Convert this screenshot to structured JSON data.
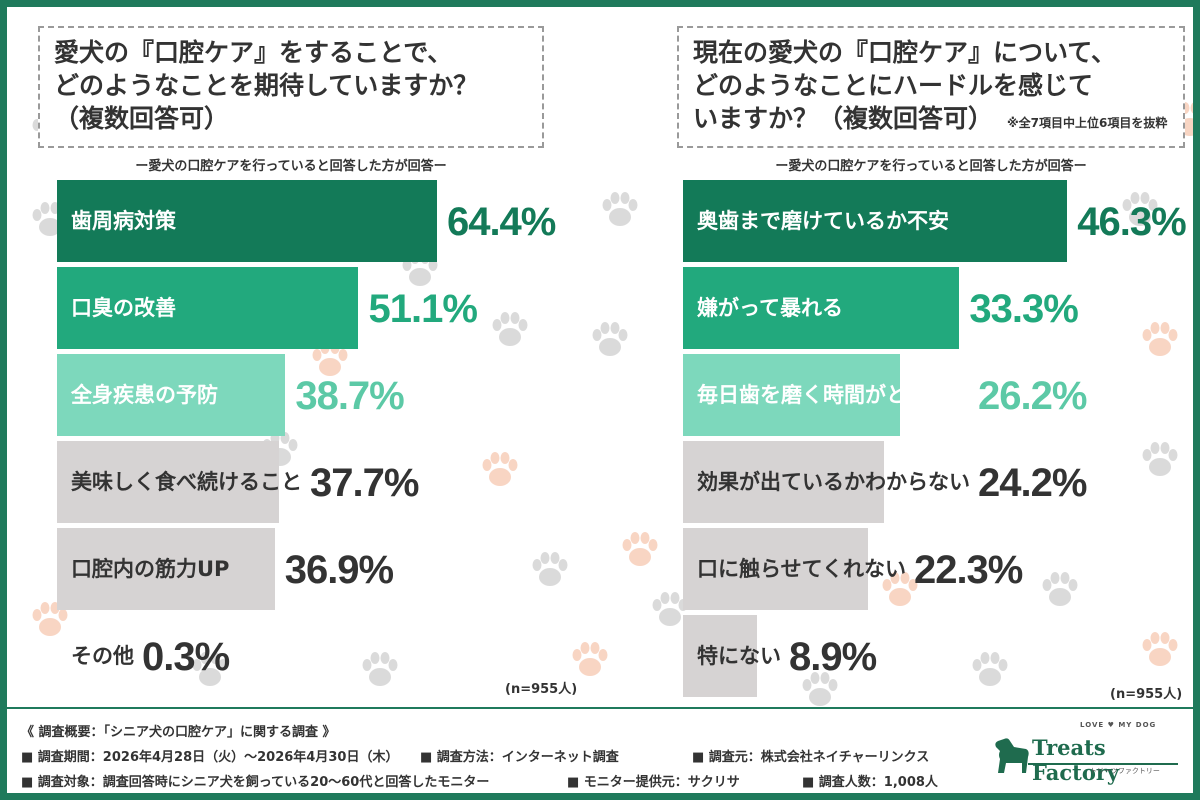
{
  "left": {
    "question_lines": [
      "愛犬の『口腔ケア』をすることで、",
      "どのようなことを期待していますか？",
      "（複数回答可）"
    ],
    "subtitle": "ー愛犬の口腔ケアを行っていると回答した方が回答ー",
    "n_label": "(n=955人)"
  },
  "right": {
    "question_lines": [
      "現在の愛犬の『口腔ケア』について、",
      "どのようなことにハードルを感じて",
      "いますか？（複数回答可）"
    ],
    "question_note": "※全7項目中上位6項目を抜粋",
    "subtitle": "ー愛犬の口腔ケアを行っていると回答した方が回答ー",
    "n_label": "(n=955人)"
  },
  "chart_data": [
    {
      "type": "bar",
      "orientation": "horizontal",
      "title": "愛犬の『口腔ケア』をすることで、どのようなことを期待していますか？（複数回答可）",
      "categories": [
        "歯周病対策",
        "口臭の改善",
        "全身疾患の予防",
        "美味しく食べ続けること",
        "口腔内の筋力UP",
        "その他"
      ],
      "values": [
        64.4,
        51.1,
        38.7,
        37.7,
        36.9,
        0.3
      ],
      "value_labels": [
        "64.4%",
        "51.1%",
        "38.7%",
        "37.7%",
        "36.9%",
        "0.3%"
      ],
      "unit": "%",
      "xlim": [
        0,
        100
      ]
    },
    {
      "type": "bar",
      "orientation": "horizontal",
      "title": "現在の愛犬の『口腔ケア』について、どのようなことにハードルを感じていますか？（複数回答可）",
      "categories": [
        "奥歯まで磨けているか不安",
        "嫌がって暴れる",
        "毎日歯を磨く時間がとれない",
        "効果が出ているかわからない",
        "口に触らせてくれない",
        "特にない"
      ],
      "values": [
        46.3,
        33.3,
        26.2,
        24.2,
        22.3,
        8.9
      ],
      "value_labels": [
        "46.3%",
        "33.3%",
        "26.2%",
        "24.2%",
        "22.3%",
        "8.9%"
      ],
      "unit": "%",
      "xlim": [
        0,
        70
      ]
    }
  ],
  "colors": {
    "rank1": "#137a58",
    "rank2": "#22a97d",
    "rank3": "#7dd8bc",
    "rest": "#d6d3d3",
    "frame": "#1f7a5c"
  },
  "footer": {
    "heading": "《 調査概要：「シニア犬の口腔ケア」に関する調査 》",
    "period": "■ 調査期間：2026年4月28日（火）〜2026年4月30日（木）",
    "method": "■ 調査方法：インターネット調査",
    "source": "■ 調査元：株式会社ネイチャーリンクス",
    "target": "■ 調査対象：調査回答時にシニア犬を飼っている20〜60代と回答したモニター",
    "provider": "■ モニター提供元：サクリサ",
    "count": "■ 調査人数：1,008人"
  },
  "logo": {
    "tagline": "LOVE ♥ MY DOG",
    "name": "Treats Factory",
    "sub": "トリーツファクトリー"
  }
}
